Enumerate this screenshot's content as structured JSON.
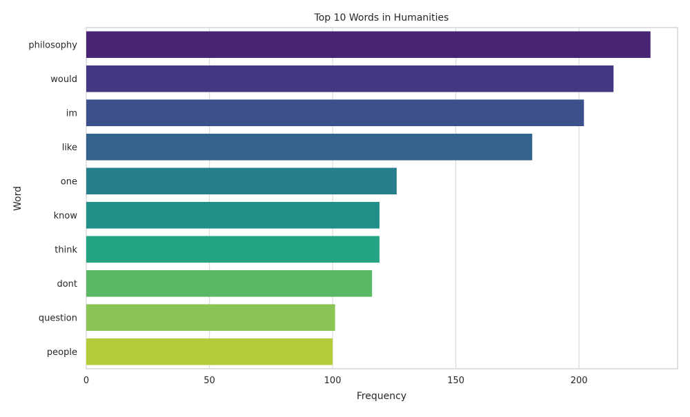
{
  "chart_data": {
    "type": "bar",
    "orientation": "horizontal",
    "title": "Top 10 Words in Humanities",
    "xlabel": "Frequency",
    "ylabel": "Word",
    "categories": [
      "philosophy",
      "would",
      "im",
      "like",
      "one",
      "know",
      "think",
      "dont",
      "question",
      "people"
    ],
    "values": [
      229,
      214,
      202,
      181,
      126,
      119,
      119,
      116,
      101,
      100
    ],
    "xlim": [
      0,
      240
    ],
    "xticks": [
      0,
      50,
      100,
      150,
      200
    ],
    "grid": true,
    "colors": [
      "#482475",
      "#453781",
      "#3c508b",
      "#33638d",
      "#277f8e",
      "#1f8f88",
      "#25a484",
      "#5ab763",
      "#8bc556",
      "#b5cb39"
    ]
  }
}
